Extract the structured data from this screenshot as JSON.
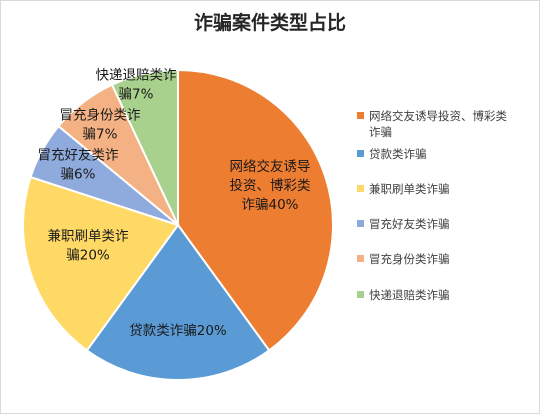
{
  "chart_data": {
    "type": "pie",
    "title": "诈骗案件类型占比",
    "legend_position": "right",
    "slices": [
      {
        "name": "网络交友诱导投资、博彩类诈骗",
        "value": 40,
        "label_lines": [
          "网络交友诱导",
          "投资、博彩类",
          "诈骗40%"
        ],
        "legend_lines": [
          "网络交友诱导投资、博彩类",
          "诈骗"
        ],
        "color": "#ED7D31"
      },
      {
        "name": "贷款类诈骗",
        "value": 20,
        "label_lines": [
          "贷款类诈骗20%"
        ],
        "legend_lines": [
          "贷款类诈骗"
        ],
        "color": "#5B9BD5"
      },
      {
        "name": "兼职刷单类诈骗",
        "value": 20,
        "label_lines": [
          "兼职刷单类诈",
          "骗20%"
        ],
        "legend_lines": [
          "兼职刷单类诈骗"
        ],
        "color": "#FFD966"
      },
      {
        "name": "冒充好友类诈骗",
        "value": 6,
        "label_lines": [
          "冒充好友类诈",
          "骗6%"
        ],
        "legend_lines": [
          "冒充好友类诈骗"
        ],
        "color": "#8FAADC"
      },
      {
        "name": "冒充身份类诈骗",
        "value": 7,
        "label_lines": [
          "冒充身份类诈",
          "骗7%"
        ],
        "legend_lines": [
          "冒充身份类诈骗"
        ],
        "color": "#F4B183"
      },
      {
        "name": "快递退赔类诈骗",
        "value": 7,
        "label_lines": [
          "快递退赔类诈",
          "骗7%"
        ],
        "legend_lines": [
          "快递退赔类诈骗"
        ],
        "color": "#A9D18E"
      }
    ]
  }
}
